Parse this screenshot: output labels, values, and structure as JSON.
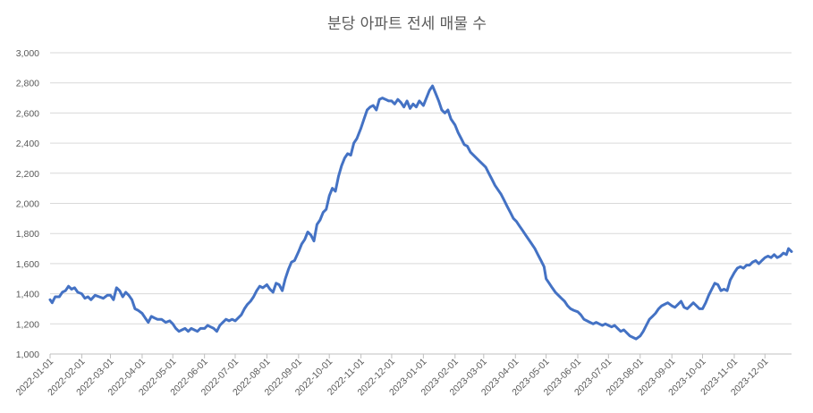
{
  "chart_data": {
    "type": "line",
    "title": "분당 아파트 전세 매물 수",
    "xlabel": "",
    "ylabel": "",
    "ylim": [
      1000,
      3000
    ],
    "yticks": [
      1000,
      1200,
      1400,
      1600,
      1800,
      2000,
      2200,
      2400,
      2600,
      2800,
      3000
    ],
    "ytick_labels": [
      "1,000",
      "1,200",
      "1,400",
      "1,600",
      "1,800",
      "2,000",
      "2,200",
      "2,400",
      "2,600",
      "2,800",
      "3,000"
    ],
    "xlim": [
      "2022-01-01",
      "2023-12-27"
    ],
    "xticks": [
      "2022-01-01",
      "2022-02-01",
      "2022-03-01",
      "2022-04-01",
      "2022-05-01",
      "2022-06-01",
      "2022-07-01",
      "2022-08-01",
      "2022-09-01",
      "2022-10-01",
      "2022-11-01",
      "2022-12-01",
      "2023-01-01",
      "2023-02-01",
      "2023-03-01",
      "2023-04-01",
      "2023-05-01",
      "2023-06-01",
      "2023-07-01",
      "2023-08-01",
      "2023-09-01",
      "2023-10-01",
      "2023-11-01",
      "2023-12-01"
    ],
    "grid": true,
    "legend": "none",
    "series_color": "#4472c4",
    "series": [
      {
        "name": "",
        "points": [
          [
            "2022-01-01",
            1360
          ],
          [
            "2022-01-03",
            1340
          ],
          [
            "2022-01-06",
            1380
          ],
          [
            "2022-01-10",
            1380
          ],
          [
            "2022-01-13",
            1410
          ],
          [
            "2022-01-16",
            1420
          ],
          [
            "2022-01-19",
            1450
          ],
          [
            "2022-01-22",
            1430
          ],
          [
            "2022-01-25",
            1440
          ],
          [
            "2022-01-28",
            1410
          ],
          [
            "2022-02-01",
            1400
          ],
          [
            "2022-02-04",
            1370
          ],
          [
            "2022-02-07",
            1380
          ],
          [
            "2022-02-10",
            1360
          ],
          [
            "2022-02-14",
            1390
          ],
          [
            "2022-02-18",
            1380
          ],
          [
            "2022-02-22",
            1370
          ],
          [
            "2022-02-26",
            1390
          ],
          [
            "2022-03-01",
            1390
          ],
          [
            "2022-03-04",
            1360
          ],
          [
            "2022-03-07",
            1440
          ],
          [
            "2022-03-10",
            1420
          ],
          [
            "2022-03-13",
            1380
          ],
          [
            "2022-03-16",
            1410
          ],
          [
            "2022-03-19",
            1390
          ],
          [
            "2022-03-22",
            1360
          ],
          [
            "2022-03-25",
            1300
          ],
          [
            "2022-03-28",
            1290
          ],
          [
            "2022-04-01",
            1270
          ],
          [
            "2022-04-04",
            1240
          ],
          [
            "2022-04-07",
            1210
          ],
          [
            "2022-04-10",
            1250
          ],
          [
            "2022-04-13",
            1240
          ],
          [
            "2022-04-16",
            1230
          ],
          [
            "2022-04-20",
            1230
          ],
          [
            "2022-04-24",
            1210
          ],
          [
            "2022-04-28",
            1220
          ],
          [
            "2022-05-01",
            1200
          ],
          [
            "2022-05-04",
            1170
          ],
          [
            "2022-05-07",
            1150
          ],
          [
            "2022-05-10",
            1160
          ],
          [
            "2022-05-13",
            1170
          ],
          [
            "2022-05-16",
            1150
          ],
          [
            "2022-05-19",
            1170
          ],
          [
            "2022-05-22",
            1160
          ],
          [
            "2022-05-25",
            1150
          ],
          [
            "2022-05-28",
            1170
          ],
          [
            "2022-06-01",
            1170
          ],
          [
            "2022-06-04",
            1190
          ],
          [
            "2022-06-07",
            1180
          ],
          [
            "2022-06-10",
            1170
          ],
          [
            "2022-06-13",
            1150
          ],
          [
            "2022-06-16",
            1190
          ],
          [
            "2022-06-19",
            1210
          ],
          [
            "2022-06-22",
            1230
          ],
          [
            "2022-06-25",
            1220
          ],
          [
            "2022-06-28",
            1230
          ],
          [
            "2022-07-01",
            1220
          ],
          [
            "2022-07-04",
            1240
          ],
          [
            "2022-07-07",
            1260
          ],
          [
            "2022-07-10",
            1300
          ],
          [
            "2022-07-13",
            1330
          ],
          [
            "2022-07-16",
            1350
          ],
          [
            "2022-07-19",
            1380
          ],
          [
            "2022-07-22",
            1420
          ],
          [
            "2022-07-25",
            1450
          ],
          [
            "2022-07-28",
            1440
          ],
          [
            "2022-08-01",
            1460
          ],
          [
            "2022-08-04",
            1430
          ],
          [
            "2022-08-07",
            1410
          ],
          [
            "2022-08-10",
            1470
          ],
          [
            "2022-08-13",
            1460
          ],
          [
            "2022-08-16",
            1420
          ],
          [
            "2022-08-19",
            1500
          ],
          [
            "2022-08-22",
            1560
          ],
          [
            "2022-08-25",
            1610
          ],
          [
            "2022-08-28",
            1620
          ],
          [
            "2022-09-01",
            1680
          ],
          [
            "2022-09-04",
            1730
          ],
          [
            "2022-09-07",
            1760
          ],
          [
            "2022-09-10",
            1810
          ],
          [
            "2022-09-13",
            1790
          ],
          [
            "2022-09-16",
            1750
          ],
          [
            "2022-09-19",
            1860
          ],
          [
            "2022-09-22",
            1890
          ],
          [
            "2022-09-25",
            1940
          ],
          [
            "2022-09-28",
            1960
          ],
          [
            "2022-10-01",
            2050
          ],
          [
            "2022-10-04",
            2100
          ],
          [
            "2022-10-07",
            2080
          ],
          [
            "2022-10-10",
            2180
          ],
          [
            "2022-10-13",
            2250
          ],
          [
            "2022-10-16",
            2300
          ],
          [
            "2022-10-19",
            2330
          ],
          [
            "2022-10-22",
            2320
          ],
          [
            "2022-10-25",
            2400
          ],
          [
            "2022-10-28",
            2430
          ],
          [
            "2022-11-01",
            2500
          ],
          [
            "2022-11-04",
            2560
          ],
          [
            "2022-11-07",
            2620
          ],
          [
            "2022-11-10",
            2640
          ],
          [
            "2022-11-13",
            2650
          ],
          [
            "2022-11-16",
            2620
          ],
          [
            "2022-11-19",
            2690
          ],
          [
            "2022-11-22",
            2700
          ],
          [
            "2022-11-25",
            2690
          ],
          [
            "2022-11-28",
            2680
          ],
          [
            "2022-12-01",
            2680
          ],
          [
            "2022-12-04",
            2660
          ],
          [
            "2022-12-07",
            2690
          ],
          [
            "2022-12-10",
            2670
          ],
          [
            "2022-12-13",
            2640
          ],
          [
            "2022-12-16",
            2680
          ],
          [
            "2022-12-19",
            2630
          ],
          [
            "2022-12-22",
            2660
          ],
          [
            "2022-12-25",
            2640
          ],
          [
            "2022-12-28",
            2680
          ],
          [
            "2023-01-01",
            2650
          ],
          [
            "2023-01-04",
            2700
          ],
          [
            "2023-01-07",
            2750
          ],
          [
            "2023-01-10",
            2780
          ],
          [
            "2023-01-13",
            2730
          ],
          [
            "2023-01-16",
            2680
          ],
          [
            "2023-01-19",
            2620
          ],
          [
            "2023-01-22",
            2600
          ],
          [
            "2023-01-25",
            2620
          ],
          [
            "2023-01-28",
            2560
          ],
          [
            "2023-02-01",
            2520
          ],
          [
            "2023-02-04",
            2470
          ],
          [
            "2023-02-07",
            2430
          ],
          [
            "2023-02-10",
            2390
          ],
          [
            "2023-02-13",
            2380
          ],
          [
            "2023-02-16",
            2340
          ],
          [
            "2023-02-19",
            2320
          ],
          [
            "2023-02-22",
            2300
          ],
          [
            "2023-02-25",
            2280
          ],
          [
            "2023-02-28",
            2260
          ],
          [
            "2023-03-03",
            2240
          ],
          [
            "2023-03-06",
            2200
          ],
          [
            "2023-03-09",
            2160
          ],
          [
            "2023-03-12",
            2120
          ],
          [
            "2023-03-15",
            2090
          ],
          [
            "2023-03-18",
            2060
          ],
          [
            "2023-03-21",
            2020
          ],
          [
            "2023-03-24",
            1980
          ],
          [
            "2023-03-27",
            1940
          ],
          [
            "2023-03-30",
            1900
          ],
          [
            "2023-04-02",
            1880
          ],
          [
            "2023-04-05",
            1850
          ],
          [
            "2023-04-08",
            1820
          ],
          [
            "2023-04-11",
            1790
          ],
          [
            "2023-04-14",
            1760
          ],
          [
            "2023-04-17",
            1730
          ],
          [
            "2023-04-20",
            1700
          ],
          [
            "2023-04-23",
            1660
          ],
          [
            "2023-04-26",
            1620
          ],
          [
            "2023-04-29",
            1580
          ],
          [
            "2023-05-01",
            1500
          ],
          [
            "2023-05-04",
            1470
          ],
          [
            "2023-05-07",
            1440
          ],
          [
            "2023-05-10",
            1410
          ],
          [
            "2023-05-13",
            1390
          ],
          [
            "2023-05-16",
            1370
          ],
          [
            "2023-05-19",
            1350
          ],
          [
            "2023-05-22",
            1320
          ],
          [
            "2023-05-25",
            1300
          ],
          [
            "2023-05-28",
            1290
          ],
          [
            "2023-06-01",
            1280
          ],
          [
            "2023-06-04",
            1260
          ],
          [
            "2023-06-07",
            1230
          ],
          [
            "2023-06-10",
            1220
          ],
          [
            "2023-06-13",
            1210
          ],
          [
            "2023-06-16",
            1200
          ],
          [
            "2023-06-19",
            1210
          ],
          [
            "2023-06-22",
            1200
          ],
          [
            "2023-06-25",
            1190
          ],
          [
            "2023-06-28",
            1200
          ],
          [
            "2023-07-01",
            1190
          ],
          [
            "2023-07-04",
            1180
          ],
          [
            "2023-07-07",
            1190
          ],
          [
            "2023-07-10",
            1170
          ],
          [
            "2023-07-13",
            1150
          ],
          [
            "2023-07-16",
            1160
          ],
          [
            "2023-07-19",
            1140
          ],
          [
            "2023-07-22",
            1120
          ],
          [
            "2023-07-25",
            1110
          ],
          [
            "2023-07-28",
            1100
          ],
          [
            "2023-08-01",
            1120
          ],
          [
            "2023-08-04",
            1150
          ],
          [
            "2023-08-07",
            1190
          ],
          [
            "2023-08-10",
            1230
          ],
          [
            "2023-08-13",
            1250
          ],
          [
            "2023-08-16",
            1270
          ],
          [
            "2023-08-19",
            1300
          ],
          [
            "2023-08-22",
            1320
          ],
          [
            "2023-08-25",
            1330
          ],
          [
            "2023-08-28",
            1340
          ],
          [
            "2023-09-01",
            1320
          ],
          [
            "2023-09-04",
            1310
          ],
          [
            "2023-09-07",
            1330
          ],
          [
            "2023-09-10",
            1350
          ],
          [
            "2023-09-13",
            1310
          ],
          [
            "2023-09-16",
            1300
          ],
          [
            "2023-09-19",
            1320
          ],
          [
            "2023-09-22",
            1340
          ],
          [
            "2023-09-25",
            1320
          ],
          [
            "2023-09-28",
            1300
          ],
          [
            "2023-10-01",
            1300
          ],
          [
            "2023-10-04",
            1340
          ],
          [
            "2023-10-07",
            1390
          ],
          [
            "2023-10-10",
            1430
          ],
          [
            "2023-10-13",
            1470
          ],
          [
            "2023-10-16",
            1460
          ],
          [
            "2023-10-19",
            1420
          ],
          [
            "2023-10-22",
            1430
          ],
          [
            "2023-10-25",
            1420
          ],
          [
            "2023-10-28",
            1490
          ],
          [
            "2023-11-01",
            1540
          ],
          [
            "2023-11-04",
            1570
          ],
          [
            "2023-11-07",
            1580
          ],
          [
            "2023-11-10",
            1570
          ],
          [
            "2023-11-13",
            1590
          ],
          [
            "2023-11-16",
            1590
          ],
          [
            "2023-11-19",
            1610
          ],
          [
            "2023-11-22",
            1620
          ],
          [
            "2023-11-25",
            1600
          ],
          [
            "2023-11-28",
            1620
          ],
          [
            "2023-12-01",
            1640
          ],
          [
            "2023-12-04",
            1650
          ],
          [
            "2023-12-07",
            1640
          ],
          [
            "2023-12-10",
            1660
          ],
          [
            "2023-12-13",
            1640
          ],
          [
            "2023-12-16",
            1650
          ],
          [
            "2023-12-19",
            1670
          ],
          [
            "2023-12-22",
            1660
          ],
          [
            "2023-12-24",
            1700
          ],
          [
            "2023-12-27",
            1680
          ]
        ]
      }
    ]
  }
}
